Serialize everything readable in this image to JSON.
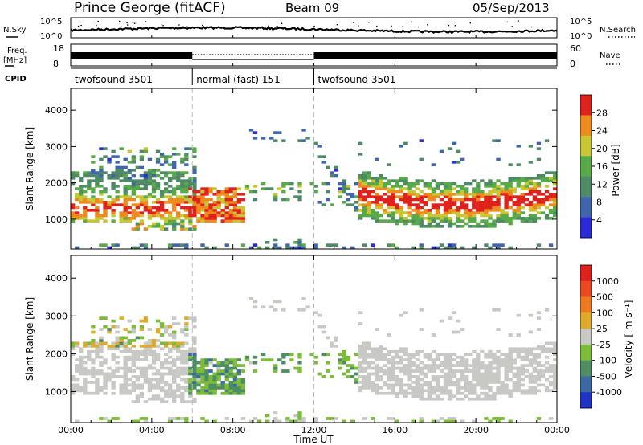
{
  "header": {
    "station": "Prince George (fitACF)",
    "beam": "Beam 09",
    "date": "05/Sep/2013"
  },
  "top_panels": {
    "nsky_label": "N.Sky",
    "nsky_ticks": [
      "10^5",
      "10^0"
    ],
    "nsearch_label": "N.Search",
    "nsearch_ticks": [
      "10^5",
      "10^0"
    ],
    "freq_label_1": "Freq.",
    "freq_label_2": "[MHz]",
    "freq_ticks": [
      "18",
      "8"
    ],
    "nave_label": "Nave",
    "nave_ticks": [
      "60",
      "0"
    ],
    "cpid_label": "CPID",
    "cpid_segments": [
      {
        "label": "twofsound 3501",
        "start_h": 0,
        "end_h": 6
      },
      {
        "label": "normal (fast) 151",
        "start_h": 6,
        "end_h": 12
      },
      {
        "label": "twofsound 3501",
        "start_h": 12,
        "end_h": 24
      }
    ]
  },
  "chart_data": [
    {
      "type": "heatmap",
      "title": "",
      "ylabel": "Slant Range [km]",
      "xlabel": "",
      "xlim": [
        0,
        24
      ],
      "ylim": [
        180,
        4600
      ],
      "yticks": [
        "1000",
        "2000",
        "3000",
        "4000"
      ],
      "colorbar": {
        "label": "Power [dB]",
        "ticks": [
          "28",
          "24",
          "20",
          "16",
          "12",
          "8",
          "4"
        ],
        "range": [
          0,
          30
        ],
        "colors": [
          "#2a2ad8",
          "#3f66ad",
          "#4f8a66",
          "#58aa48",
          "#c8c632",
          "#ef8a1e",
          "#e0221c"
        ]
      }
    },
    {
      "type": "heatmap",
      "title": "",
      "ylabel": "Slant Range [km]",
      "xlabel": "Time UT",
      "xlim": [
        0,
        24
      ],
      "ylim": [
        180,
        4600
      ],
      "yticks": [
        "1000",
        "2000",
        "3000",
        "4000"
      ],
      "xticks": [
        "00:00",
        "04:00",
        "08:00",
        "12:00",
        "16:00",
        "20:00",
        "00:00"
      ],
      "colorbar": {
        "label": "Velocity [ m s⁻¹]",
        "ticks": [
          "1000",
          "500",
          "100",
          "25",
          "-25",
          "-100",
          "-500",
          "-1000"
        ],
        "range": [
          -1000,
          1000
        ],
        "colors": [
          "#1f33c8",
          "#3b6aa2",
          "#4c8e62",
          "#7cbc3a",
          "#c8c8c4",
          "#e0aa2a",
          "#ef7a1e",
          "#e84a1e",
          "#e0201c"
        ]
      }
    }
  ]
}
